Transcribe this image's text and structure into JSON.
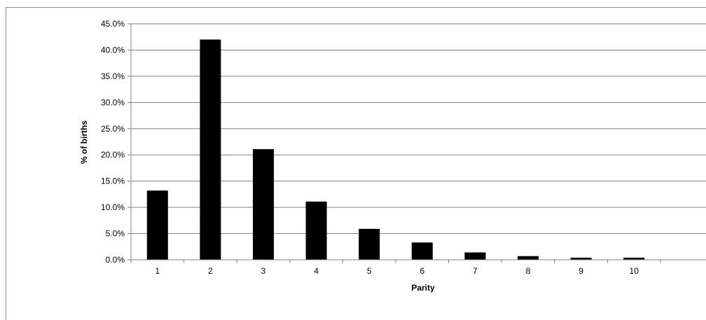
{
  "chart_data": {
    "type": "bar",
    "title": "",
    "xlabel": "Parity",
    "ylabel": "% of births",
    "categories": [
      "1",
      "2",
      "3",
      "4",
      "5",
      "6",
      "7",
      "8",
      "9",
      "10"
    ],
    "values": [
      13.2,
      42.0,
      21.1,
      11.1,
      5.9,
      3.3,
      1.4,
      0.7,
      0.4,
      0.4
    ],
    "ylim": [
      0,
      45
    ],
    "yticks": [
      "0.0%",
      "5.0%",
      "10.0%",
      "15.0%",
      "20.0%",
      "25.0%",
      "30.0%",
      "35.0%",
      "40.0%",
      "45.0%"
    ],
    "grid": true,
    "legend": "none",
    "colors": {
      "bar": "#000000",
      "grid": "#808080",
      "axis": "#808080"
    }
  }
}
